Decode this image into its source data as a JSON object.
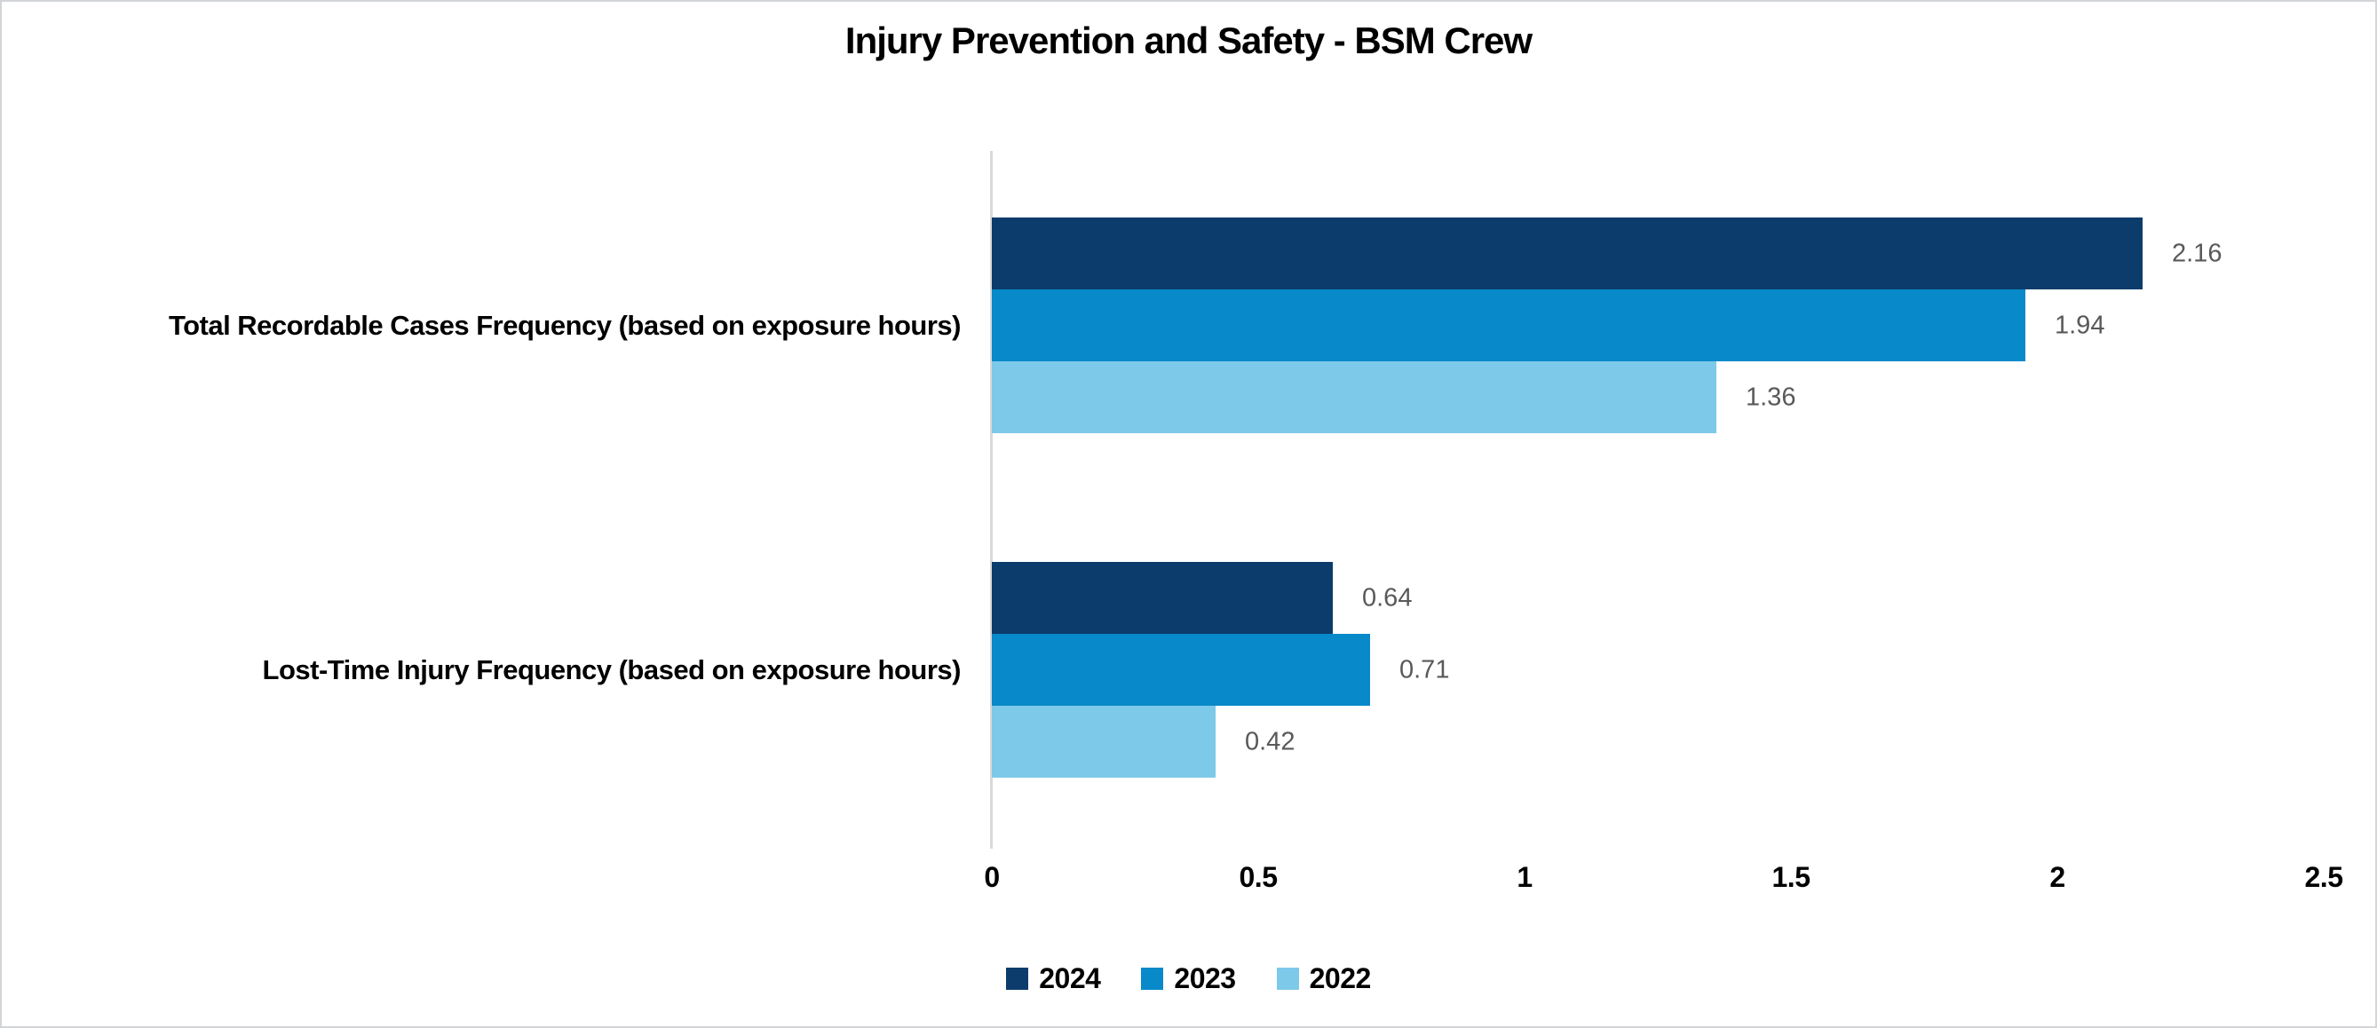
{
  "title": "Injury Prevention and Safety - BSM Crew",
  "chart_data": {
    "type": "bar",
    "orientation": "horizontal",
    "title": "Injury Prevention and Safety - BSM Crew",
    "categories": [
      "Total Recordable Cases Frequency (based on exposure hours)",
      "Lost-Time Injury Frequency (based on exposure hours)"
    ],
    "series": [
      {
        "name": "2024",
        "color": "#0b3c6b",
        "values": [
          2.16,
          0.64
        ],
        "labels": [
          "2.16",
          "0.64"
        ]
      },
      {
        "name": "2023",
        "color": "#0889c9",
        "values": [
          1.94,
          0.71
        ],
        "labels": [
          "1.94",
          "0.71"
        ]
      },
      {
        "name": "2022",
        "color": "#7dc9ea",
        "values": [
          1.36,
          0.42
        ],
        "labels": [
          "1.36",
          "0.42"
        ]
      }
    ],
    "xlim": [
      0,
      2.5
    ],
    "x_ticks": [
      {
        "value": 0,
        "label": "0"
      },
      {
        "value": 0.5,
        "label": "0.5"
      },
      {
        "value": 1,
        "label": "1"
      },
      {
        "value": 1.5,
        "label": "1.5"
      },
      {
        "value": 2,
        "label": "2"
      },
      {
        "value": 2.5,
        "label": "2.5"
      }
    ],
    "legend_position": "bottom",
    "legend_entries": [
      "2024",
      "2023",
      "2022"
    ],
    "grid": false,
    "value_label_color": "#595959",
    "axis_line_color": "#d9d9d9"
  }
}
